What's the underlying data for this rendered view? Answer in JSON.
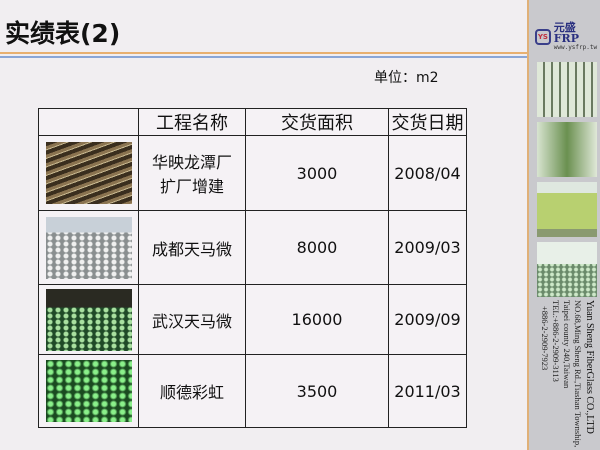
{
  "title": "实绩表(2)",
  "unit": "单位：m2",
  "table": {
    "headers": [
      "",
      "工程名称",
      "交货面积",
      "交货日期"
    ],
    "rows": [
      {
        "name_line1": "华映龙潭厂",
        "name_line2": "扩厂增建",
        "area": "3000",
        "date": "2008/04",
        "photo": "factory-interior-photo"
      },
      {
        "name_line1": "成都天马微",
        "name_line2": "",
        "area": "8000",
        "date": "2009/03",
        "photo": "cleanroom-floor-construction-photo"
      },
      {
        "name_line1": "武汉天马微",
        "name_line2": "",
        "area": "16000",
        "date": "2009/09",
        "photo": "green-perforated-floor-photo"
      },
      {
        "name_line1": "顺德彩虹",
        "name_line2": "",
        "area": "3500",
        "date": "2011/03",
        "photo": "green-grating-floor-photo"
      }
    ]
  },
  "sidebar": {
    "logo_mark": "YS",
    "brand": "元盛FRP",
    "url": "www.ysfrp.tw",
    "address": [
      "Yuan Sheng FiberGlass CO.,LTD",
      "NO.68,Ming Sheng Rd.,Tiashan Township,",
      "Taipei county 240,Taiwan",
      "TEL:+886-2-2909-3113",
      "+886-2-2909-7923"
    ]
  },
  "colors": {
    "orange_rule": "#e8b070",
    "blue_rule": "#8aa6d6",
    "sidebar": "#c9c9cd"
  }
}
